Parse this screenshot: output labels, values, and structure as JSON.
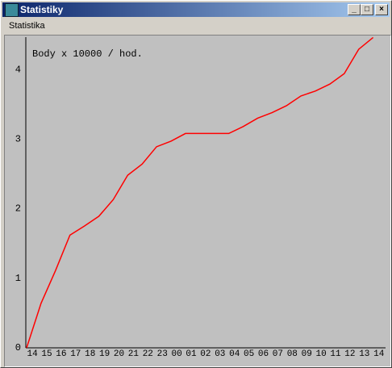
{
  "window": {
    "title": "Statistiky",
    "menu": "Statistika"
  },
  "chart_data": {
    "type": "line",
    "annotation": "Body x 10000 / hod.",
    "categories": [
      "14",
      "15",
      "16",
      "17",
      "18",
      "19",
      "20",
      "21",
      "22",
      "23",
      "00",
      "01",
      "02",
      "03",
      "04",
      "05",
      "06",
      "07",
      "08",
      "09",
      "10",
      "11",
      "12",
      "13",
      "14"
    ],
    "series": [
      {
        "color": "#ff0000",
        "values": [
          0,
          0.64,
          1.11,
          1.62,
          1.75,
          1.89,
          2.13,
          2.48,
          2.64,
          2.89,
          2.97,
          3.08,
          3.08,
          3.08,
          3.08,
          3.18,
          3.3,
          3.38,
          3.48,
          3.62,
          3.69,
          3.79,
          3.94,
          4.29,
          4.46
        ]
      }
    ],
    "ylim": [
      0,
      4.5
    ],
    "yticks": [
      0,
      1,
      2,
      3,
      4
    ]
  }
}
